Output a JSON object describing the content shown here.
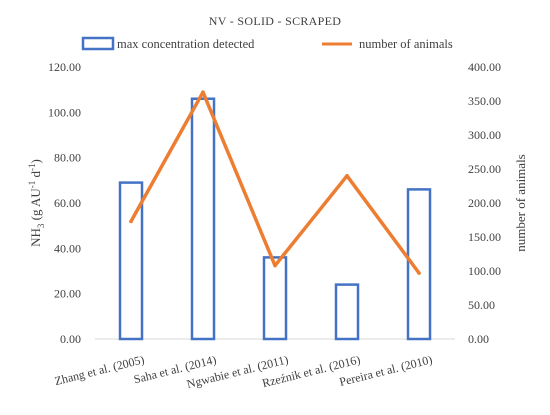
{
  "chart_data": {
    "type": "bar",
    "title": "NV - SOLID - SCRAPED",
    "categories": [
      "Zhang et al. (2005)",
      "Saha et al. (2014)",
      "Ngwabie et al. (2011)",
      "Rzeźnik et al. (2016)",
      "Pereira et al. (2010)"
    ],
    "series": [
      {
        "name": "max concentration detected",
        "type": "bar",
        "axis": "left",
        "color": "#4472C4",
        "fill": "none",
        "values": [
          69,
          106,
          36,
          24,
          66
        ]
      },
      {
        "name": "number of animals",
        "type": "line",
        "axis": "right",
        "color": "#ED7D31",
        "values": [
          173,
          363,
          108,
          240,
          97
        ]
      }
    ],
    "ylabel": {
      "main": "NH",
      "sub": "3",
      "rest": " (g AU",
      "sup1": "-1",
      "mid": " d",
      "sup2": "-1",
      "end": ")"
    },
    "ylabel_right": "number of animals",
    "ylim": [
      0,
      120
    ],
    "ylim_right": [
      0,
      400
    ],
    "yticks": [
      "0.00",
      "20.00",
      "40.00",
      "60.00",
      "80.00",
      "100.00",
      "120.00"
    ],
    "yticks_right": [
      "0.00",
      "50.00",
      "100.00",
      "150.00",
      "200.00",
      "250.00",
      "300.00",
      "350.00",
      "400.00"
    ],
    "legend_position": "top",
    "grid": false
  }
}
